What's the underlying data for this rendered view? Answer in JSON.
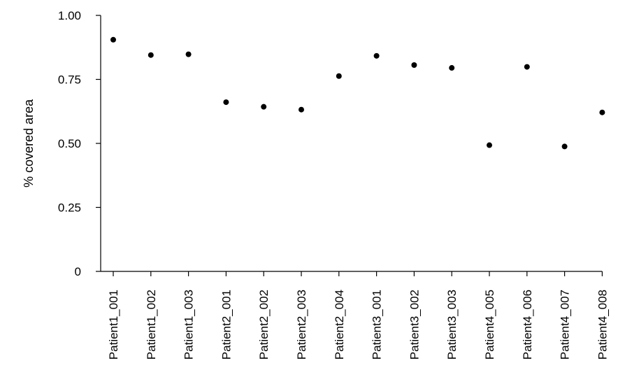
{
  "chart_data": {
    "type": "scatter",
    "ylabel": "% covered area",
    "xlabel": "",
    "ylim": [
      0,
      1.0
    ],
    "yticks": [
      {
        "value": 0,
        "label": "0"
      },
      {
        "value": 0.25,
        "label": "0.25"
      },
      {
        "value": 0.5,
        "label": "0.50"
      },
      {
        "value": 0.75,
        "label": "0.75"
      },
      {
        "value": 1.0,
        "label": "1.00"
      }
    ],
    "categories": [
      "Patient1_001",
      "Patient1_002",
      "Patient1_003",
      "Patient2_001",
      "Patient2_002",
      "Patient2_003",
      "Patient2_004",
      "Patient3_001",
      "Patient3_002",
      "Patient3_003",
      "Patient4_005",
      "Patient4_006",
      "Patient4_007",
      "Patient4_008"
    ],
    "values": [
      0.905,
      0.845,
      0.848,
      0.661,
      0.643,
      0.632,
      0.763,
      0.842,
      0.806,
      0.795,
      0.493,
      0.799,
      0.488,
      0.621
    ],
    "grid": false,
    "legend": "none",
    "point_color": "#000000"
  }
}
